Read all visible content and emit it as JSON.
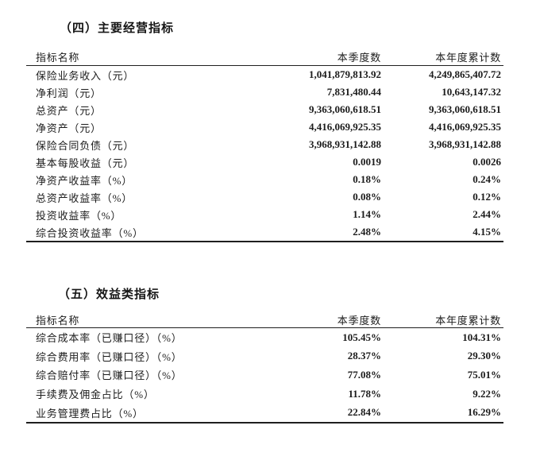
{
  "section4": {
    "title": "（四）主要经营指标",
    "table": {
      "headers": [
        "指标名称",
        "本季度数",
        "本年度累计数"
      ],
      "rows": [
        [
          "保险业务收入（元）",
          "1,041,879,813.92",
          "4,249,865,407.72"
        ],
        [
          "净利润（元）",
          "7,831,480.44",
          "10,643,147.32"
        ],
        [
          "总资产（元）",
          "9,363,060,618.51",
          "9,363,060,618.51"
        ],
        [
          "净资产（元）",
          "4,416,069,925.35",
          "4,416,069,925.35"
        ],
        [
          "保险合同负债（元）",
          "3,968,931,142.88",
          "3,968,931,142.88"
        ],
        [
          "基本每股收益（元）",
          "0.0019",
          "0.0026"
        ],
        [
          "净资产收益率（%）",
          "0.18%",
          "0.24%"
        ],
        [
          "总资产收益率（%）",
          "0.08%",
          "0.12%"
        ],
        [
          "投资收益率（%）",
          "1.14%",
          "2.44%"
        ],
        [
          "综合投资收益率（%）",
          "2.48%",
          "4.15%"
        ]
      ]
    }
  },
  "section5": {
    "title": "（五）效益类指标",
    "table": {
      "headers": [
        "指标名称",
        "本季度数",
        "本年度累计数"
      ],
      "rows": [
        [
          "综合成本率（已赚口径）（%）",
          "105.45%",
          "104.31%"
        ],
        [
          "综合费用率（已赚口径）（%）",
          "28.37%",
          "29.30%"
        ],
        [
          "综合赔付率（已赚口径）（%）",
          "77.08%",
          "75.01%"
        ],
        [
          "手续费及佣金占比（%）",
          "11.78%",
          "9.22%"
        ],
        [
          "业务管理费占比（%）",
          "22.84%",
          "16.29%"
        ]
      ]
    }
  },
  "colors": {
    "text": "#1c1c1c",
    "rule": "#1f1f1f",
    "background": "#ffffff"
  }
}
